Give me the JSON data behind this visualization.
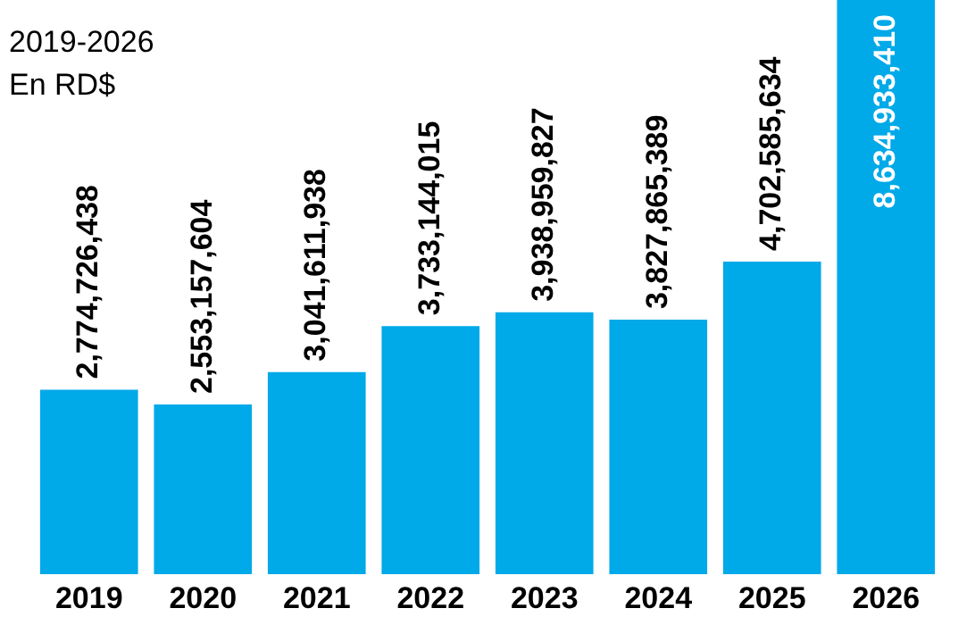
{
  "chart_data": {
    "type": "bar",
    "subtitle": "2019-2026",
    "annotations": [
      "En RD$"
    ],
    "categories": [
      "2019",
      "2020",
      "2021",
      "2022",
      "2023",
      "2024",
      "2025",
      "2026"
    ],
    "values": [
      2774726438,
      2553157604,
      3041611938,
      3733144015,
      3938959827,
      3827865389,
      4702585634,
      8634933410
    ],
    "value_labels": [
      "2,774,726,438",
      "2,553,157,604",
      "3,041,611,938",
      "3,733,144,015",
      "3,938,959,827",
      "3,827,865,389",
      "4,702,585,634",
      "8,634,933,410"
    ],
    "color": "#00a9e8"
  }
}
